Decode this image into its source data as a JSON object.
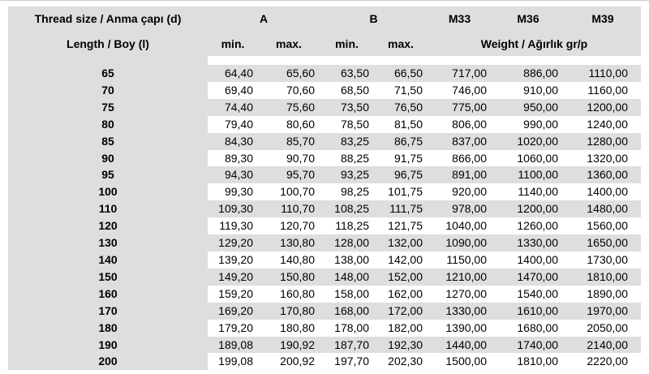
{
  "table": {
    "colors": {
      "gray_bg": "#dedede",
      "white_bg": "#ffffff",
      "text": "#000000"
    },
    "header": {
      "thread_size_label": "Thread size / Anma çapı (d)",
      "col_a": "A",
      "col_b": "B",
      "col_m33": "M33",
      "col_m36": "M36",
      "col_m39": "M39",
      "length_label": "Length / Boy (l)",
      "a_min": "min.",
      "a_max": "max.",
      "b_min": "min.",
      "b_max": "max.",
      "weight_label": "Weight / Ağırlık gr/p"
    },
    "rows": [
      {
        "length": "65",
        "a_min": "64,40",
        "a_max": "65,60",
        "b_min": "63,50",
        "b_max": "66,50",
        "m33": "717,00",
        "m36": "886,00",
        "m39": "1110,00"
      },
      {
        "length": "70",
        "a_min": "69,40",
        "a_max": "70,60",
        "b_min": "68,50",
        "b_max": "71,50",
        "m33": "746,00",
        "m36": "910,00",
        "m39": "1160,00"
      },
      {
        "length": "75",
        "a_min": "74,40",
        "a_max": "75,60",
        "b_min": "73,50",
        "b_max": "76,50",
        "m33": "775,00",
        "m36": "950,00",
        "m39": "1200,00"
      },
      {
        "length": "80",
        "a_min": "79,40",
        "a_max": "80,60",
        "b_min": "78,50",
        "b_max": "81,50",
        "m33": "806,00",
        "m36": "990,00",
        "m39": "1240,00"
      },
      {
        "length": "85",
        "a_min": "84,30",
        "a_max": "85,70",
        "b_min": "83,25",
        "b_max": "86,75",
        "m33": "837,00",
        "m36": "1020,00",
        "m39": "1280,00"
      },
      {
        "length": "90",
        "a_min": "89,30",
        "a_max": "90,70",
        "b_min": "88,25",
        "b_max": "91,75",
        "m33": "866,00",
        "m36": "1060,00",
        "m39": "1320,00"
      },
      {
        "length": "95",
        "a_min": "94,30",
        "a_max": "95,70",
        "b_min": "93,25",
        "b_max": "96,75",
        "m33": "891,00",
        "m36": "1100,00",
        "m39": "1360,00"
      },
      {
        "length": "100",
        "a_min": "99,30",
        "a_max": "100,70",
        "b_min": "98,25",
        "b_max": "101,75",
        "m33": "920,00",
        "m36": "1140,00",
        "m39": "1400,00"
      },
      {
        "length": "110",
        "a_min": "109,30",
        "a_max": "110,70",
        "b_min": "108,25",
        "b_max": "111,75",
        "m33": "978,00",
        "m36": "1200,00",
        "m39": "1480,00"
      },
      {
        "length": "120",
        "a_min": "119,30",
        "a_max": "120,70",
        "b_min": "118,25",
        "b_max": "121,75",
        "m33": "1040,00",
        "m36": "1260,00",
        "m39": "1560,00"
      },
      {
        "length": "130",
        "a_min": "129,20",
        "a_max": "130,80",
        "b_min": "128,00",
        "b_max": "132,00",
        "m33": "1090,00",
        "m36": "1330,00",
        "m39": "1650,00"
      },
      {
        "length": "140",
        "a_min": "139,20",
        "a_max": "140,80",
        "b_min": "138,00",
        "b_max": "142,00",
        "m33": "1150,00",
        "m36": "1400,00",
        "m39": "1730,00"
      },
      {
        "length": "150",
        "a_min": "149,20",
        "a_max": "150,80",
        "b_min": "148,00",
        "b_max": "152,00",
        "m33": "1210,00",
        "m36": "1470,00",
        "m39": "1810,00"
      },
      {
        "length": "160",
        "a_min": "159,20",
        "a_max": "160,80",
        "b_min": "158,00",
        "b_max": "162,00",
        "m33": "1270,00",
        "m36": "1540,00",
        "m39": "1890,00"
      },
      {
        "length": "170",
        "a_min": "169,20",
        "a_max": "170,80",
        "b_min": "168,00",
        "b_max": "172,00",
        "m33": "1330,00",
        "m36": "1610,00",
        "m39": "1970,00"
      },
      {
        "length": "180",
        "a_min": "179,20",
        "a_max": "180,80",
        "b_min": "178,00",
        "b_max": "182,00",
        "m33": "1390,00",
        "m36": "1680,00",
        "m39": "2050,00"
      },
      {
        "length": "190",
        "a_min": "189,08",
        "a_max": "190,92",
        "b_min": "187,70",
        "b_max": "192,30",
        "m33": "1440,00",
        "m36": "1740,00",
        "m39": "2140,00"
      },
      {
        "length": "200",
        "a_min": "199,08",
        "a_max": "200,92",
        "b_min": "197,70",
        "b_max": "202,30",
        "m33": "1500,00",
        "m36": "1810,00",
        "m39": "2220,00"
      }
    ]
  }
}
